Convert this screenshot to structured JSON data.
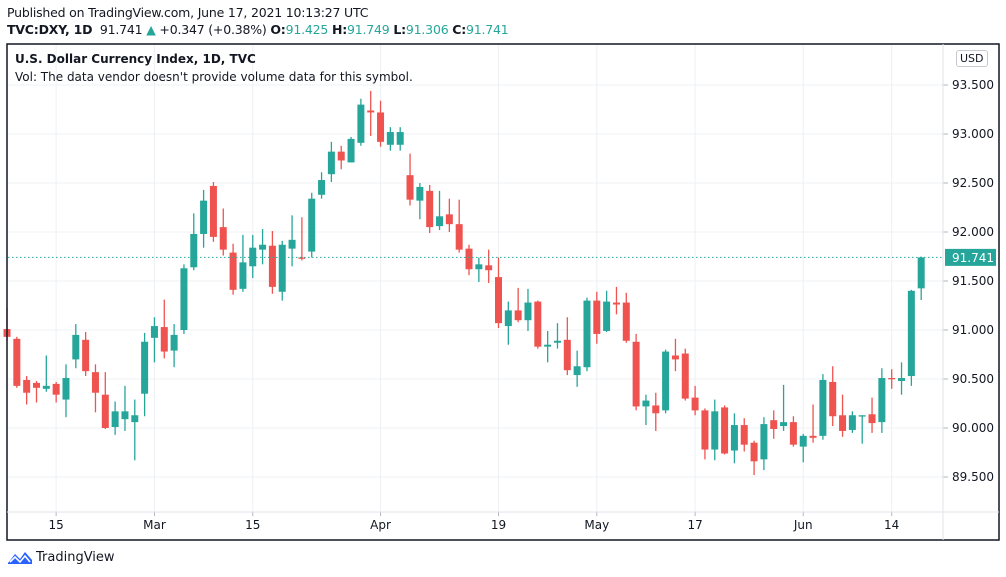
{
  "header": {
    "published": "Published on TradingView.com, June 17, 2021 10:13:27 UTC",
    "symbol": "TVC:DXY, 1D",
    "last": "91.741",
    "change": "+0.347 (+0.38%)",
    "o_label": "O:",
    "o": "91.425",
    "h_label": "H:",
    "h": "91.749",
    "l_label": "L:",
    "l": "91.306",
    "c_label": "C:",
    "c": "91.741"
  },
  "pane": {
    "title": "U.S. Dollar Currency Index, 1D, TVC",
    "vol_note": "Vol: The data vendor doesn't provide volume data for this symbol.",
    "currency": "USD",
    "last_price_label": "91.741"
  },
  "footer": {
    "brand": "TradingView"
  },
  "colors": {
    "up": "#26a69a",
    "down": "#ef5350",
    "grid": "#f0f3fa",
    "brand": "#2962ff"
  },
  "chart_data": {
    "type": "candlestick",
    "title": "U.S. Dollar Currency Index, 1D, TVC",
    "ylim": [
      89.3,
      93.9
    ],
    "y_ticks": [
      "93.500",
      "93.000",
      "92.500",
      "92.000",
      "91.500",
      "91.000",
      "90.500",
      "90.000",
      "89.500"
    ],
    "y_tick_values": [
      93.5,
      93.0,
      92.5,
      92.0,
      91.5,
      91.0,
      90.5,
      90.0,
      89.5
    ],
    "x_ticks": [
      {
        "label": "15",
        "index": 5
      },
      {
        "label": "Mar",
        "index": 15
      },
      {
        "label": "15",
        "index": 25
      },
      {
        "label": "Apr",
        "index": 38
      },
      {
        "label": "19",
        "index": 50
      },
      {
        "label": "May",
        "index": 60
      },
      {
        "label": "17",
        "index": 70
      },
      {
        "label": "Jun",
        "index": 81
      },
      {
        "label": "14",
        "index": 90
      }
    ],
    "last_price": 91.741,
    "ohlc": [
      [
        91.01,
        91.23,
        90.89,
        90.93
      ],
      [
        90.91,
        90.93,
        90.41,
        90.43
      ],
      [
        90.49,
        90.53,
        90.24,
        90.36
      ],
      [
        90.46,
        90.48,
        90.26,
        90.41
      ],
      [
        90.4,
        90.74,
        90.37,
        90.43
      ],
      [
        90.45,
        90.47,
        90.26,
        90.34
      ],
      [
        90.29,
        90.65,
        90.11,
        90.51
      ],
      [
        90.7,
        91.06,
        90.61,
        90.95
      ],
      [
        90.9,
        90.98,
        90.53,
        90.58
      ],
      [
        90.57,
        90.65,
        90.16,
        90.36
      ],
      [
        90.34,
        90.57,
        89.99,
        90.0
      ],
      [
        90.01,
        90.27,
        89.93,
        90.17
      ],
      [
        90.09,
        90.43,
        89.97,
        90.17
      ],
      [
        90.06,
        90.29,
        89.67,
        90.13
      ],
      [
        90.35,
        90.97,
        90.12,
        90.88
      ],
      [
        90.92,
        91.13,
        90.67,
        91.04
      ],
      [
        91.03,
        91.31,
        90.71,
        90.78
      ],
      [
        90.79,
        91.06,
        90.62,
        90.95
      ],
      [
        91.0,
        91.67,
        90.96,
        91.63
      ],
      [
        91.64,
        92.19,
        91.61,
        91.98
      ],
      [
        91.98,
        92.43,
        91.84,
        92.32
      ],
      [
        92.47,
        92.51,
        91.9,
        91.95
      ],
      [
        92.05,
        92.24,
        91.76,
        91.82
      ],
      [
        91.79,
        91.88,
        91.36,
        91.41
      ],
      [
        91.42,
        91.97,
        91.39,
        91.69
      ],
      [
        91.65,
        91.97,
        91.53,
        91.84
      ],
      [
        91.82,
        92.03,
        91.67,
        91.87
      ],
      [
        91.86,
        92.01,
        91.37,
        91.44
      ],
      [
        91.39,
        91.91,
        91.3,
        91.87
      ],
      [
        91.83,
        92.17,
        91.65,
        91.92
      ],
      [
        91.74,
        92.15,
        91.71,
        91.73
      ],
      [
        91.8,
        92.4,
        91.74,
        92.34
      ],
      [
        92.38,
        92.61,
        92.34,
        92.53
      ],
      [
        92.59,
        92.92,
        92.51,
        92.82
      ],
      [
        92.82,
        92.88,
        92.64,
        92.73
      ],
      [
        92.71,
        92.97,
        92.71,
        92.95
      ],
      [
        92.91,
        93.36,
        92.88,
        93.3
      ],
      [
        93.24,
        93.44,
        92.98,
        93.22
      ],
      [
        93.22,
        93.34,
        92.87,
        92.92
      ],
      [
        92.89,
        93.07,
        92.83,
        93.02
      ],
      [
        92.89,
        93.07,
        92.83,
        93.02
      ],
      [
        92.58,
        92.8,
        92.27,
        92.33
      ],
      [
        92.32,
        92.5,
        92.13,
        92.46
      ],
      [
        92.42,
        92.48,
        91.99,
        92.05
      ],
      [
        92.06,
        92.42,
        92.02,
        92.16
      ],
      [
        92.18,
        92.34,
        92.0,
        92.08
      ],
      [
        92.08,
        92.33,
        91.79,
        91.82
      ],
      [
        91.83,
        91.87,
        91.56,
        91.62
      ],
      [
        91.62,
        91.74,
        91.49,
        91.67
      ],
      [
        91.66,
        91.82,
        91.48,
        91.61
      ],
      [
        91.54,
        91.74,
        91.02,
        91.07
      ],
      [
        91.04,
        91.29,
        90.85,
        91.2
      ],
      [
        91.2,
        91.43,
        91.08,
        91.1
      ],
      [
        91.1,
        91.42,
        90.99,
        91.28
      ],
      [
        91.29,
        91.3,
        90.81,
        90.83
      ],
      [
        90.83,
        90.99,
        90.67,
        90.85
      ],
      [
        90.87,
        91.07,
        90.81,
        90.89
      ],
      [
        90.9,
        91.13,
        90.54,
        90.59
      ],
      [
        90.54,
        90.79,
        90.42,
        90.63
      ],
      [
        90.62,
        91.33,
        90.58,
        91.3
      ],
      [
        91.3,
        91.39,
        90.86,
        90.96
      ],
      [
        90.99,
        91.4,
        90.98,
        91.29
      ],
      [
        91.28,
        91.44,
        91.16,
        91.26
      ],
      [
        91.28,
        91.38,
        90.87,
        90.89
      ],
      [
        90.88,
        90.96,
        90.18,
        90.22
      ],
      [
        90.22,
        90.34,
        90.03,
        90.28
      ],
      [
        90.23,
        90.36,
        89.97,
        90.15
      ],
      [
        90.18,
        90.8,
        90.15,
        90.78
      ],
      [
        90.74,
        90.91,
        90.58,
        90.7
      ],
      [
        90.76,
        90.81,
        90.28,
        90.3
      ],
      [
        90.31,
        90.43,
        90.13,
        90.18
      ],
      [
        90.18,
        90.2,
        89.68,
        89.78
      ],
      [
        89.78,
        90.29,
        89.67,
        90.17
      ],
      [
        90.21,
        90.23,
        89.73,
        89.74
      ],
      [
        89.77,
        90.15,
        89.64,
        90.03
      ],
      [
        90.03,
        90.1,
        89.76,
        89.83
      ],
      [
        89.85,
        89.87,
        89.52,
        89.66
      ],
      [
        89.68,
        90.11,
        89.57,
        90.04
      ],
      [
        90.08,
        90.18,
        89.89,
        89.99
      ],
      [
        90.02,
        90.44,
        89.97,
        90.06
      ],
      [
        90.06,
        90.12,
        89.81,
        89.83
      ],
      [
        89.81,
        89.94,
        89.65,
        89.92
      ],
      [
        89.92,
        90.24,
        89.85,
        89.9
      ],
      [
        89.92,
        90.55,
        89.88,
        90.49
      ],
      [
        90.47,
        90.63,
        90.02,
        90.12
      ],
      [
        90.13,
        90.34,
        89.91,
        89.97
      ],
      [
        89.98,
        90.17,
        89.95,
        90.13
      ],
      [
        90.12,
        90.13,
        89.84,
        90.13
      ],
      [
        90.14,
        90.31,
        89.95,
        90.05
      ],
      [
        90.06,
        90.61,
        89.95,
        90.51
      ],
      [
        90.51,
        90.6,
        90.4,
        90.5
      ],
      [
        90.48,
        90.67,
        90.34,
        90.51
      ],
      [
        90.53,
        91.41,
        90.43,
        91.4
      ],
      [
        91.425,
        91.749,
        91.306,
        91.741
      ]
    ]
  }
}
